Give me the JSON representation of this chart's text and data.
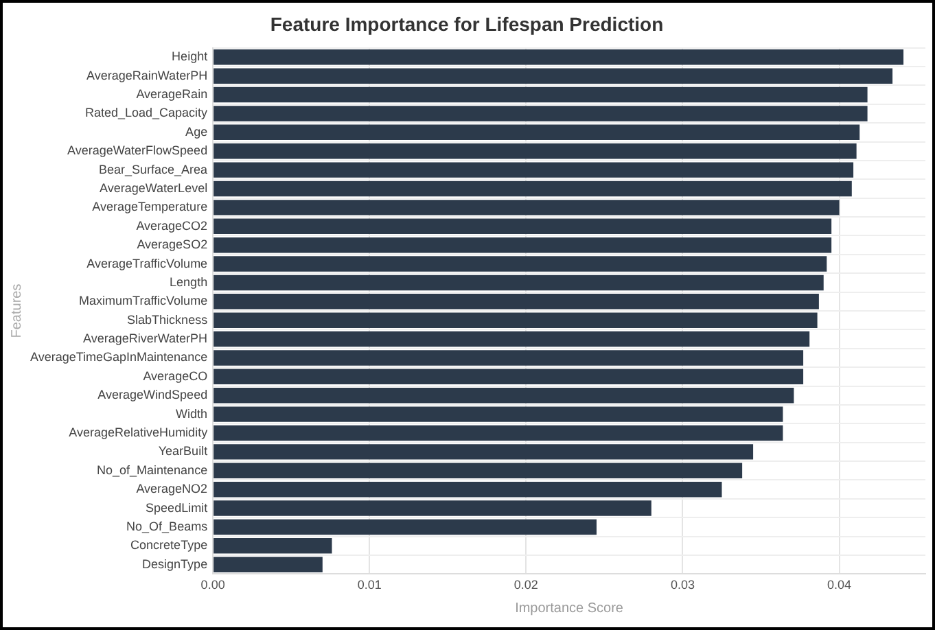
{
  "chart_data": {
    "type": "bar",
    "orientation": "horizontal",
    "title": "Feature Importance for Lifespan Prediction",
    "xlabel": "Importance Score",
    "ylabel": "Features",
    "categories": [
      "Height",
      "AverageRainWaterPH",
      "AverageRain",
      "Rated_Load_Capacity",
      "Age",
      "AverageWaterFlowSpeed",
      "Bear_Surface_Area",
      "AverageWaterLevel",
      "AverageTemperature",
      "AverageCO2",
      "AverageSO2",
      "AverageTrafficVolume",
      "Length",
      "MaximumTrafficVolume",
      "SlabThickness",
      "AverageRiverWaterPH",
      "AverageTimeGapInMaintenance",
      "AverageCO",
      "AverageWindSpeed",
      "Width",
      "AverageRelativeHumidity",
      "YearBuilt",
      "No_of_Maintenance",
      "AverageNO2",
      "SpeedLimit",
      "No_Of_Beams",
      "ConcreteType",
      "DesignType"
    ],
    "values": [
      0.0441,
      0.0434,
      0.0418,
      0.0418,
      0.0413,
      0.0411,
      0.0409,
      0.0408,
      0.04,
      0.0395,
      0.0395,
      0.0392,
      0.039,
      0.0387,
      0.0386,
      0.0381,
      0.0377,
      0.0377,
      0.0371,
      0.0364,
      0.0364,
      0.0345,
      0.0338,
      0.0325,
      0.028,
      0.0245,
      0.0076,
      0.007
    ],
    "color": "#2c3a4b",
    "xlim": [
      0,
      0.0455
    ],
    "xticks": [
      {
        "value": 0,
        "label": "0.00"
      },
      0.01,
      0.02,
      0.03,
      0.04
    ],
    "grid": true
  }
}
